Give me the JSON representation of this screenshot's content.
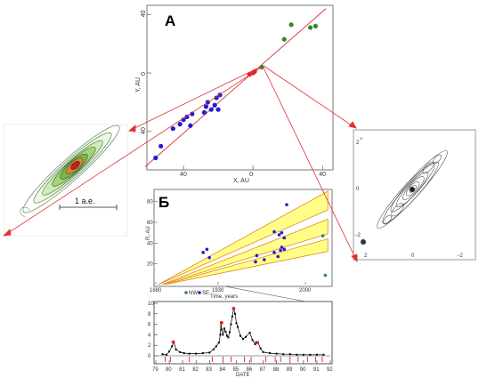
{
  "chart_data": [
    {
      "id": "A",
      "type": "scatter",
      "title": "А",
      "xlabel": "X, AU",
      "ylabel": "Y, AU",
      "xlim": [
        -60,
        45
      ],
      "ylim": [
        -65,
        45
      ],
      "x_ticks": [
        {
          "value": -40,
          "label": "40"
        },
        {
          "value": 0,
          "label": "0"
        },
        {
          "value": 40,
          "label": "40"
        }
      ],
      "y_ticks": [
        {
          "value": 40,
          "label": "40"
        },
        {
          "value": 0,
          "label": "0"
        },
        {
          "value": -40,
          "label": "40"
        }
      ],
      "series": [
        {
          "color": "#1f1fd0",
          "points": [
            [
              -56,
              -58
            ],
            [
              -53,
              -50
            ],
            [
              -46,
              -38
            ],
            [
              -42,
              -35
            ],
            [
              -40,
              -32
            ],
            [
              -38,
              -30
            ],
            [
              -36,
              -36
            ],
            [
              -35,
              -28
            ],
            [
              -28,
              -27
            ],
            [
              -27,
              -23
            ],
            [
              -26,
              -20
            ],
            [
              -24,
              -25
            ],
            [
              -22,
              -22
            ],
            [
              -20,
              -25
            ],
            [
              -21,
              -17
            ],
            [
              -19,
              -15
            ]
          ]
        },
        {
          "color": "#2e8b2e",
          "points": [
            [
              5,
              4
            ],
            [
              18,
              23
            ],
            [
              22,
              33
            ],
            [
              33,
              31
            ],
            [
              36,
              32
            ]
          ]
        },
        {
          "color": "#e02020",
          "points": [
            [
              -2,
              -1
            ],
            [
              0,
              0
            ],
            [
              1,
              1
            ]
          ]
        }
      ],
      "fit_line": [
        [
          -62,
          -64
        ],
        [
          42,
          44
        ]
      ],
      "grid": false
    },
    {
      "id": "B",
      "type": "scatter",
      "title": "Б",
      "xlabel": "Time, years",
      "ylabel": "R, AU",
      "xlim": [
        1880,
        2020
      ],
      "ylim": [
        0,
        90
      ],
      "x_ticks": [
        {
          "value": 1880,
          "label": "1880"
        },
        {
          "value": 1930,
          "label": "1930"
        },
        {
          "value": 2000,
          "label": "2000"
        }
      ],
      "y_ticks": [
        {
          "value": 80,
          "label": "80"
        },
        {
          "value": 60,
          "label": "60"
        },
        {
          "value": 40,
          "label": "40"
        },
        {
          "value": 20,
          "label": "20"
        }
      ],
      "legend": [
        {
          "label": "NW",
          "color": "#2e8b2e"
        },
        {
          "label": "SE",
          "color": "#1f1fd0"
        }
      ],
      "series": [
        {
          "name": "SE",
          "color": "#1f1fd0",
          "points": [
            [
              1918,
              31
            ],
            [
              1921,
              34
            ],
            [
              1923,
              26
            ],
            [
              1960,
              22
            ],
            [
              1961,
              28
            ],
            [
              1967,
              24
            ],
            [
              1975,
              31
            ],
            [
              1978,
              27
            ],
            [
              1980,
              33
            ],
            [
              1981,
              36
            ],
            [
              1983,
              34
            ],
            [
              1975,
              51
            ],
            [
              1979,
              48
            ],
            [
              1981,
              50
            ],
            [
              1983,
              45
            ],
            [
              1985,
              77
            ]
          ]
        },
        {
          "name": "NW",
          "color": "#2e8b2e",
          "points": [
            [
              2014,
              47
            ],
            [
              2016,
              9
            ]
          ]
        }
      ],
      "bands": [
        {
          "start": [
            1882,
            0
          ],
          "upper_end": [
            2018,
            90
          ],
          "lower_end": [
            2018,
            72
          ]
        },
        {
          "start": [
            1885,
            0
          ],
          "upper_end": [
            2018,
            63
          ],
          "lower_end": [
            2018,
            49
          ]
        },
        {
          "start": [
            1887,
            0
          ],
          "upper_end": [
            2018,
            44
          ],
          "lower_end": [
            2018,
            32
          ]
        }
      ],
      "grid": false
    },
    {
      "id": "C",
      "type": "line",
      "xlabel": "DATE",
      "ylabel": "",
      "xlim": [
        79,
        92
      ],
      "ylim": [
        0,
        10
      ],
      "x_ticks": [
        "79",
        "80",
        "81",
        "82",
        "83",
        "84",
        "85",
        "86",
        "87",
        "88",
        "89",
        "90",
        "91",
        "92"
      ],
      "y_ticks": [
        "0",
        "2",
        "4",
        "6",
        "8",
        "10"
      ],
      "series": [
        {
          "name": "flux",
          "color": "#000000",
          "x": [
            79.5,
            79.8,
            80.0,
            80.2,
            80.35,
            80.5,
            80.8,
            81.1,
            81.5,
            82.0,
            82.5,
            83.0,
            83.3,
            83.5,
            83.7,
            83.8,
            83.85,
            83.9,
            84.0,
            84.1,
            84.2,
            84.3,
            84.4,
            84.5,
            84.6,
            84.7,
            84.8,
            84.9,
            85.0,
            85.1,
            85.3,
            85.5,
            85.7,
            86.0,
            86.2,
            86.4,
            86.6,
            86.8,
            87.0,
            87.5,
            88.0,
            88.5,
            89.0,
            89.5,
            90.0,
            90.5,
            91.0,
            91.5
          ],
          "y": [
            0.3,
            0.2,
            0.8,
            1.8,
            2.6,
            1.2,
            0.7,
            0.5,
            0.4,
            0.4,
            0.5,
            0.6,
            1.2,
            1.8,
            2.5,
            4.0,
            6.2,
            5.0,
            4.0,
            5.2,
            4.6,
            3.8,
            3.5,
            4.5,
            6.0,
            7.5,
            9.0,
            8.0,
            6.2,
            5.5,
            3.8,
            3.2,
            3.6,
            4.4,
            3.0,
            2.2,
            2.6,
            1.4,
            0.7,
            0.5,
            0.4,
            0.3,
            0.3,
            0.2,
            0.2,
            0.2,
            0.2,
            0.2
          ]
        },
        {
          "name": "peaks",
          "color": "#e02020",
          "x": [
            80.3,
            83.9,
            84.8,
            86.5
          ],
          "y": [
            2.6,
            6.3,
            9.0,
            2.5
          ]
        }
      ],
      "event_markers": [
        79.7,
        80.1,
        81.5,
        83.2,
        84.0,
        84.6,
        85.6,
        86.1,
        87.2,
        87.9,
        88.3,
        89.0,
        89.6,
        90.3,
        90.9,
        91.4
      ],
      "grid": false
    }
  ],
  "annotations": {
    "scale_bar_label": "1 а.е."
  },
  "left_image_ticks": [],
  "right_image_ticks": {
    "x": [
      "2",
      "0",
      "−2"
    ],
    "y": [
      "2",
      "0",
      "−2"
    ]
  }
}
